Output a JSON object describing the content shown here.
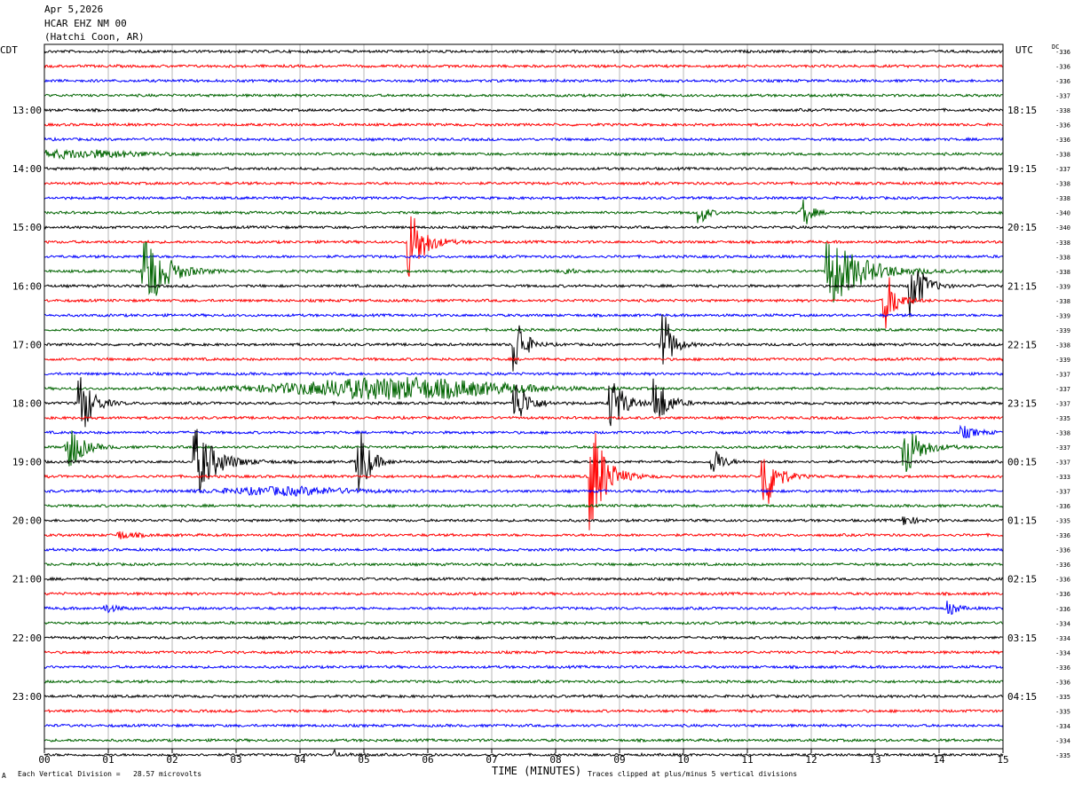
{
  "header": {
    "date": "Apr 5,2026",
    "station": "HCAR EHZ NM 00",
    "location": "(Hatchi Coon, AR)"
  },
  "left_tz": "CDT",
  "right_tz": "UTC",
  "dc_label": "DC",
  "footer": {
    "division": "Each Vertical Division =   28.57 microvolts",
    "clip": "Traces clipped at plus/minus 5 vertical divisions",
    "mark": "A"
  },
  "colors": {
    "trace_cycle": [
      "#000000",
      "#ff0000",
      "#0000ff",
      "#006400"
    ],
    "grid": "#999999"
  },
  "chart_data": {
    "type": "line",
    "title": "",
    "xlabel": "TIME (MINUTES)",
    "ylabel": "",
    "xlim": [
      0,
      15
    ],
    "x_ticks": [
      "00",
      "01",
      "02",
      "03",
      "04",
      "05",
      "06",
      "07",
      "08",
      "09",
      "10",
      "11",
      "12",
      "13",
      "14",
      "15"
    ],
    "rows_per_hour": 4,
    "left_hour_labels": [
      "13:00",
      "14:00",
      "15:00",
      "16:00",
      "17:00",
      "18:00",
      "19:00",
      "20:00",
      "21:00",
      "22:00",
      "23:00"
    ],
    "right_hour_labels": [
      "18:15",
      "19:15",
      "20:15",
      "21:15",
      "22:15",
      "23:15",
      "00:15",
      "01:15",
      "02:15",
      "03:15",
      "04:15"
    ],
    "dc_offsets": [
      336,
      336,
      336,
      337,
      338,
      336,
      336,
      338,
      337,
      338,
      338,
      340,
      340,
      338,
      338,
      338,
      339,
      338,
      339,
      339,
      338,
      339,
      337,
      337,
      337,
      335,
      338,
      337,
      337,
      333,
      337,
      336,
      335,
      336,
      336,
      336,
      336,
      336,
      336,
      334,
      334,
      334,
      336,
      336,
      335,
      335,
      334,
      334,
      335
    ],
    "events": [
      {
        "row": 7,
        "minute": 0.5,
        "amp": 4,
        "dur": 1.5,
        "env": "long"
      },
      {
        "row": 11,
        "minute": 10.3,
        "amp": 11,
        "dur": 0.25
      },
      {
        "row": 11,
        "minute": 11.9,
        "amp": 16,
        "dur": 0.3
      },
      {
        "row": 13,
        "minute": 5.75,
        "amp": 40,
        "dur": 0.55
      },
      {
        "row": 15,
        "minute": 1.6,
        "amp": 45,
        "dur": 0.8
      },
      {
        "row": 15,
        "minute": 12.3,
        "amp": 40,
        "dur": 1.3
      },
      {
        "row": 15,
        "minute": 8.2,
        "amp": 4,
        "dur": 0.2
      },
      {
        "row": 16,
        "minute": 13.6,
        "amp": 35,
        "dur": 0.45
      },
      {
        "row": 17,
        "minute": 13.2,
        "amp": 30,
        "dur": 0.4
      },
      {
        "row": 20,
        "minute": 7.4,
        "amp": 35,
        "dur": 0.35
      },
      {
        "row": 20,
        "minute": 9.7,
        "amp": 38,
        "dur": 0.35
      },
      {
        "row": 23,
        "minute": 5.5,
        "amp": 12,
        "dur": 2.5,
        "env": "long"
      },
      {
        "row": 24,
        "minute": 0.6,
        "amp": 35,
        "dur": 0.45
      },
      {
        "row": 24,
        "minute": 7.4,
        "amp": 25,
        "dur": 0.5
      },
      {
        "row": 24,
        "minute": 8.9,
        "amp": 30,
        "dur": 0.5
      },
      {
        "row": 24,
        "minute": 9.6,
        "amp": 28,
        "dur": 0.45
      },
      {
        "row": 26,
        "minute": 14.4,
        "amp": 6,
        "dur": 0.6
      },
      {
        "row": 27,
        "minute": 0.4,
        "amp": 28,
        "dur": 0.5
      },
      {
        "row": 27,
        "minute": 13.5,
        "amp": 30,
        "dur": 0.6
      },
      {
        "row": 28,
        "minute": 2.4,
        "amp": 38,
        "dur": 0.8
      },
      {
        "row": 28,
        "minute": 4.95,
        "amp": 40,
        "dur": 0.4
      },
      {
        "row": 28,
        "minute": 10.5,
        "amp": 15,
        "dur": 0.35
      },
      {
        "row": 29,
        "minute": 8.6,
        "amp": 60,
        "dur": 0.55
      },
      {
        "row": 29,
        "minute": 11.3,
        "amp": 40,
        "dur": 0.45
      },
      {
        "row": 30,
        "minute": 3.8,
        "amp": 4,
        "dur": 1.5,
        "env": "long"
      },
      {
        "row": 32,
        "minute": 13.5,
        "amp": 5,
        "dur": 0.4
      },
      {
        "row": 33,
        "minute": 1.2,
        "amp": 4,
        "dur": 0.6
      },
      {
        "row": 38,
        "minute": 1.0,
        "amp": 4,
        "dur": 0.4
      },
      {
        "row": 38,
        "minute": 14.2,
        "amp": 7,
        "dur": 0.3
      },
      {
        "row": 48,
        "minute": 4.6,
        "amp": 7,
        "dur": 0.5
      }
    ]
  }
}
